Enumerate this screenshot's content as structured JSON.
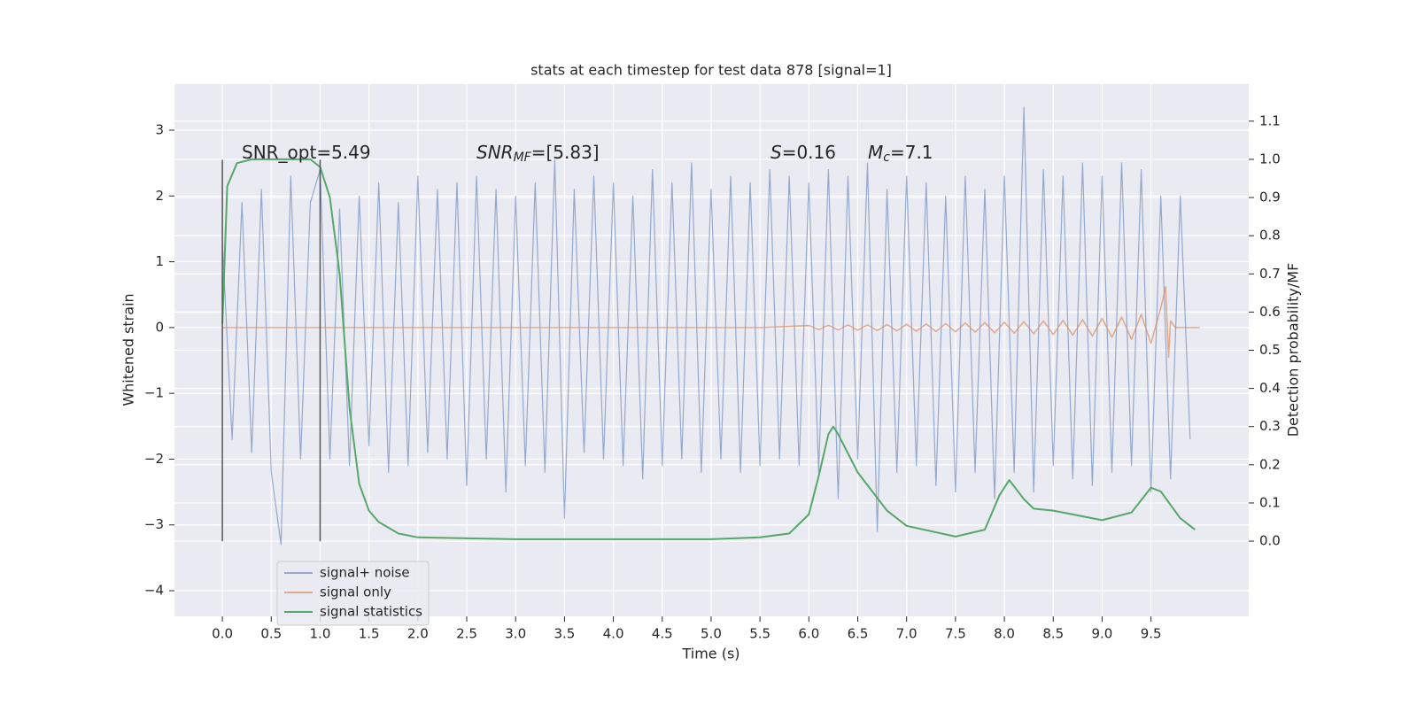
{
  "chart_data": {
    "type": "line",
    "title": "stats at each timestep for test data 878 [signal=1]",
    "xlabel": "Time (s)",
    "ylabel": "Whitened strain",
    "y2label": "Detection probability/MF",
    "xlim": [
      -0.49,
      10.5
    ],
    "ylim": [
      -4.39,
      3.7
    ],
    "y2lim": [
      -0.197,
      1.197
    ],
    "xticks": [
      {
        "value": 0,
        "label": "0.0"
      },
      0.5,
      {
        "value": 1,
        "label": "1.0"
      },
      1.5,
      {
        "value": 2,
        "label": "2.0"
      },
      2.5,
      {
        "value": 3,
        "label": "3.0"
      },
      3.5,
      {
        "value": 4,
        "label": "4.0"
      },
      4.5,
      {
        "value": 5,
        "label": "5.0"
      },
      5.5,
      {
        "value": 6,
        "label": "6.0"
      },
      6.5,
      {
        "value": 7,
        "label": "7.0"
      },
      7.5,
      {
        "value": 8,
        "label": "8.0"
      },
      8.5,
      {
        "value": 9,
        "label": "9.0"
      },
      9.5
    ],
    "yticks": [
      {
        "value": -4,
        "label": "−4"
      },
      {
        "value": -3,
        "label": "−3"
      },
      {
        "value": -2,
        "label": "−2"
      },
      {
        "value": -1,
        "label": "−1"
      },
      0,
      1,
      2,
      3
    ],
    "y2ticks": [
      {
        "value": 0,
        "label": "0.0"
      },
      0.1,
      0.2,
      0.3,
      0.4,
      0.5,
      0.6,
      0.7,
      0.8,
      0.9,
      {
        "value": 1,
        "label": "1.0"
      },
      1.1
    ],
    "grid": true,
    "legend": "lower left",
    "vlines": [
      0,
      1
    ],
    "vline_span": [
      -3.25,
      2.55
    ],
    "annotations": [
      [
        "SNR_opt=5.49"
      ],
      [
        "SNR",
        "MF",
        "=[5.83]"
      ],
      [
        "S",
        "=0.16"
      ],
      [
        "M",
        "c",
        "=7.1"
      ]
    ],
    "series": [
      {
        "name": "signal+ noise",
        "color": "#4c72b0",
        "x": [
          0,
          0.1,
          0.2,
          0.3,
          0.4,
          0.5,
          0.6,
          0.7,
          0.8,
          0.9,
          1,
          1.1,
          1.2,
          1.3,
          1.4,
          1.5,
          1.6,
          1.7,
          1.8,
          1.9,
          2,
          2.1,
          2.2,
          2.3,
          2.4,
          2.5,
          2.6,
          2.7,
          2.8,
          2.9,
          3,
          3.1,
          3.2,
          3.3,
          3.4,
          3.5,
          3.6,
          3.7,
          3.8,
          3.9,
          4,
          4.1,
          4.2,
          4.3,
          4.4,
          4.5,
          4.6,
          4.7,
          4.8,
          4.9,
          5,
          5.1,
          5.2,
          5.3,
          5.4,
          5.5,
          5.6,
          5.7,
          5.8,
          5.9,
          6,
          6.1,
          6.2,
          6.3,
          6.4,
          6.5,
          6.6,
          6.7,
          6.8,
          6.9,
          7,
          7.1,
          7.2,
          7.3,
          7.4,
          7.5,
          7.6,
          7.7,
          7.8,
          7.9,
          8,
          8.1,
          8.2,
          8.3,
          8.4,
          8.5,
          8.6,
          8.7,
          8.8,
          8.9,
          9,
          9.1,
          9.2,
          9.3,
          9.4,
          9.5,
          9.6,
          9.7,
          9.8,
          9.9
        ],
        "values": [
          1.3,
          -1.7,
          1.9,
          -1.9,
          2.1,
          -2.2,
          -3.3,
          2.3,
          -2.0,
          1.9,
          2.4,
          -2.0,
          1.8,
          -2.1,
          2.0,
          -1.8,
          2.2,
          -2.2,
          1.9,
          -2.1,
          2.3,
          -1.9,
          2.1,
          -2.0,
          2.2,
          -2.4,
          2.3,
          -2.0,
          2.1,
          -2.5,
          2.0,
          -2.1,
          2.2,
          -2.2,
          2.55,
          -2.9,
          2.1,
          -1.9,
          2.3,
          -2.0,
          2.2,
          -2.1,
          2.0,
          -2.3,
          2.4,
          -2.1,
          2.2,
          -2.0,
          2.5,
          -2.2,
          2.1,
          -2.0,
          2.3,
          -2.2,
          2.2,
          -2.1,
          2.4,
          -2.0,
          2.3,
          -2.1,
          2.2,
          -2.2,
          2.4,
          -2.6,
          2.3,
          -2.0,
          2.5,
          -3.1,
          2.1,
          -2.2,
          2.3,
          -2.1,
          2.2,
          -2.4,
          2.0,
          -2.5,
          2.3,
          -2.2,
          2.1,
          -2.6,
          2.3,
          -2.2,
          3.35,
          -2.5,
          2.4,
          -2.1,
          2.3,
          -2.3,
          2.5,
          -2.4,
          2.3,
          -2.2,
          2.5,
          -2.1,
          2.4,
          -2.5,
          2.0,
          -2.3,
          2.0,
          -1.7
        ]
      },
      {
        "name": "signal only",
        "color": "#dd8452",
        "x": [
          0,
          5.5,
          6,
          6.1,
          6.2,
          6.3,
          6.4,
          6.5,
          6.6,
          6.7,
          6.8,
          6.9,
          7,
          7.1,
          7.2,
          7.3,
          7.4,
          7.5,
          7.6,
          7.7,
          7.8,
          7.9,
          8,
          8.1,
          8.2,
          8.3,
          8.4,
          8.5,
          8.6,
          8.7,
          8.8,
          8.9,
          9,
          9.1,
          9.2,
          9.3,
          9.4,
          9.5,
          9.6,
          9.65,
          9.68,
          9.7,
          9.75,
          10
        ],
        "values": [
          0,
          0,
          0.03,
          -0.03,
          0.035,
          -0.035,
          0.04,
          -0.04,
          0.04,
          -0.045,
          0.045,
          -0.05,
          0.05,
          -0.055,
          0.055,
          -0.06,
          0.06,
          -0.065,
          0.07,
          -0.07,
          0.075,
          -0.08,
          0.08,
          -0.085,
          0.09,
          -0.095,
          0.1,
          -0.105,
          0.11,
          -0.115,
          0.12,
          -0.13,
          0.14,
          -0.15,
          0.16,
          -0.18,
          0.2,
          -0.24,
          0.3,
          0.62,
          -0.45,
          0.1,
          0,
          0
        ]
      },
      {
        "name": "signal statistics",
        "color": "#55a868",
        "axis": "y2",
        "x": [
          0,
          0.05,
          0.15,
          0.3,
          0.9,
          1,
          1.1,
          1.2,
          1.3,
          1.4,
          1.5,
          1.6,
          1.8,
          2,
          3,
          4,
          5,
          5.5,
          5.8,
          6,
          6.1,
          6.2,
          6.25,
          6.3,
          6.5,
          6.8,
          7,
          7.5,
          7.8,
          7.95,
          8.05,
          8.2,
          8.3,
          8.5,
          8.7,
          9,
          9.3,
          9.5,
          9.6,
          9.8,
          9.95
        ],
        "values": [
          0.57,
          0.93,
          0.99,
          1.0,
          1.0,
          0.98,
          0.9,
          0.7,
          0.35,
          0.15,
          0.08,
          0.05,
          0.02,
          0.01,
          0.005,
          0.005,
          0.005,
          0.01,
          0.02,
          0.07,
          0.17,
          0.28,
          0.3,
          0.28,
          0.18,
          0.08,
          0.04,
          0.012,
          0.03,
          0.12,
          0.16,
          0.11,
          0.085,
          0.08,
          0.07,
          0.055,
          0.075,
          0.14,
          0.13,
          0.06,
          0.03
        ]
      }
    ]
  }
}
